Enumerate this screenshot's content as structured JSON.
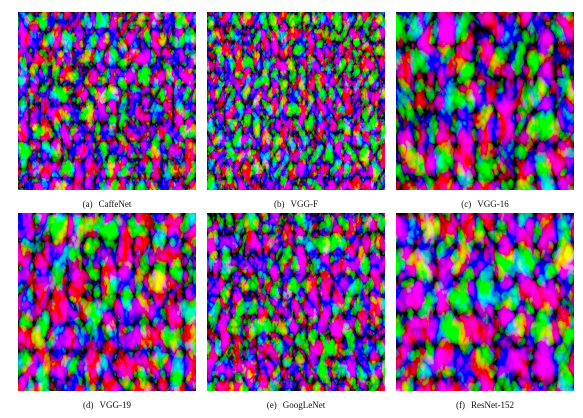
{
  "figure": {
    "panels": [
      {
        "label": "(a)",
        "name": "CaffeNet"
      },
      {
        "label": "(b)",
        "name": "VGG-F"
      },
      {
        "label": "(c)",
        "name": "VGG-16"
      },
      {
        "label": "(d)",
        "name": "VGG-19"
      },
      {
        "label": "(e)",
        "name": "GoogLeNet"
      },
      {
        "label": "(f)",
        "name": "ResNet-152"
      }
    ]
  }
}
